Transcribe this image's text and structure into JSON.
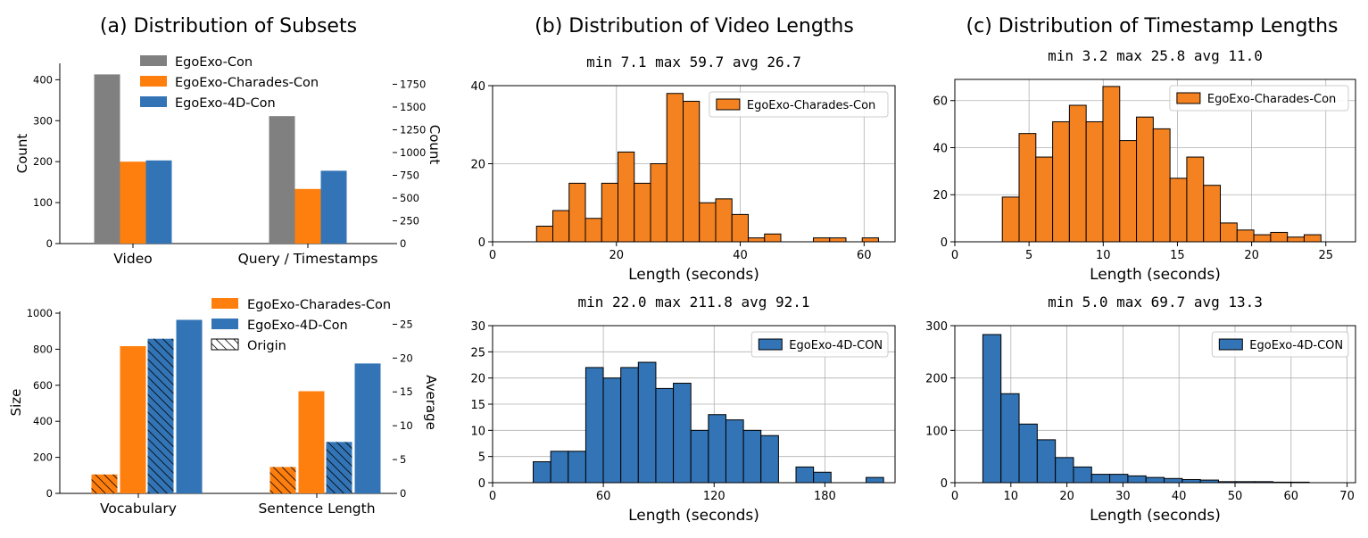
{
  "colors": {
    "gray": "#808080",
    "orange": "#ff7f0e",
    "orange_hist": "#f58220",
    "blue": "#3274b5",
    "grid": "#b0b0b0",
    "edge": "#000000"
  },
  "titles": {
    "a": "(a) Distribution of Subsets",
    "b": "(b) Distribution of Video Lengths",
    "c": "(c) Distribution of Timestamp Lengths"
  },
  "chart_data": [
    {
      "id": "subsets-counts",
      "type": "bar",
      "categories": [
        "Video",
        "Query / Timestamps"
      ],
      "ylabel_left": "Count",
      "ylabel_right": "Count",
      "ylim_left": [
        0,
        440
      ],
      "yticks_left": [
        0,
        100,
        200,
        300,
        400
      ],
      "ylim_right": [
        0,
        1980
      ],
      "yticks_right": [
        0,
        250,
        500,
        750,
        1000,
        1250,
        1500,
        1750
      ],
      "legend_position": "top-center",
      "series": [
        {
          "name": "EgoExo-Con",
          "color": "gray",
          "values": [
            413,
            1400
          ]
        },
        {
          "name": "EgoExo-Charades-Con",
          "color": "orange",
          "values": [
            200,
            600
          ]
        },
        {
          "name": "EgoExo-4D-Con",
          "color": "blue",
          "values": [
            203,
            800
          ]
        }
      ]
    },
    {
      "id": "subsets-vocab",
      "type": "bar",
      "categories": [
        "Vocabulary",
        "Sentence Length"
      ],
      "ylabel_left": "Size",
      "ylabel_right": "Average",
      "ylim_left": [
        0,
        1010
      ],
      "yticks_left": [
        0,
        200,
        400,
        600,
        800,
        1000
      ],
      "ylim_right": [
        0,
        26.9
      ],
      "yticks_right": [
        0,
        5,
        10,
        15,
        20,
        25
      ],
      "legend_position": "top-right",
      "legend": [
        {
          "name": "EgoExo-Charades-Con",
          "kind": "solid",
          "color": "orange"
        },
        {
          "name": "EgoExo-4D-Con",
          "kind": "solid",
          "color": "blue"
        },
        {
          "name": "Origin",
          "kind": "hatch"
        }
      ],
      "bars": [
        {
          "category": "Vocabulary",
          "series": "EgoExo-Charades-Con",
          "variant": "origin",
          "value": 105
        },
        {
          "category": "Vocabulary",
          "series": "EgoExo-Charades-Con",
          "variant": "con",
          "value": 817
        },
        {
          "category": "Vocabulary",
          "series": "EgoExo-4D-Con",
          "variant": "origin",
          "value": 858
        },
        {
          "category": "Vocabulary",
          "series": "EgoExo-4D-Con",
          "variant": "con",
          "value": 963
        },
        {
          "category": "Sentence Length",
          "series": "EgoExo-Charades-Con",
          "variant": "origin",
          "value": 3.9
        },
        {
          "category": "Sentence Length",
          "series": "EgoExo-Charades-Con",
          "variant": "con",
          "value": 15.1
        },
        {
          "category": "Sentence Length",
          "series": "EgoExo-4D-Con",
          "variant": "origin",
          "value": 7.6
        },
        {
          "category": "Sentence Length",
          "series": "EgoExo-4D-Con",
          "variant": "con",
          "value": 19.2
        }
      ]
    },
    {
      "id": "video-charades",
      "type": "bar",
      "subtitle": "min 7.1 max 59.7 avg 26.7",
      "xlabel": "Length (seconds)",
      "legend_label": "EgoExo-Charades-Con",
      "legend_position": "top-right",
      "color": "orange_hist",
      "grid": true,
      "xlim": [
        0,
        65
      ],
      "ylim": [
        0,
        40
      ],
      "xticks": [
        0,
        20,
        40,
        60
      ],
      "yticks": [
        0,
        20,
        40
      ],
      "bin_start": 7.1,
      "bin_width": 2.63,
      "counts": [
        4,
        8,
        15,
        6,
        15,
        23,
        15,
        20,
        38,
        36,
        10,
        11,
        7,
        1,
        2,
        0,
        0,
        1,
        1,
        0,
        1
      ]
    },
    {
      "id": "ts-charades",
      "type": "bar",
      "subtitle": "min 3.2 max 25.8 avg 11.0",
      "xlabel": "Length (seconds)",
      "legend_label": "EgoExo-Charades-Con",
      "legend_position": "top-right",
      "color": "orange_hist",
      "grid": true,
      "xlim": [
        0,
        27
      ],
      "ylim": [
        0,
        69
      ],
      "xticks": [
        0,
        5,
        10,
        15,
        20,
        25
      ],
      "yticks": [
        0,
        20,
        40,
        60
      ],
      "bin_start": 3.2,
      "bin_width": 1.13,
      "counts": [
        19,
        46,
        36,
        51,
        58,
        51,
        66,
        43,
        53,
        48,
        27,
        36,
        24,
        8,
        5,
        3,
        4,
        2,
        3
      ]
    },
    {
      "id": "video-4d",
      "type": "bar",
      "subtitle": "min 22.0 max 211.8 avg 92.1",
      "xlabel": "Length (seconds)",
      "legend_label": "EgoExo-4D-CON",
      "legend_position": "top-right",
      "color": "blue",
      "grid": true,
      "xlim": [
        0,
        218
      ],
      "ylim": [
        0,
        30
      ],
      "xticks": [
        0,
        60,
        120,
        180
      ],
      "yticks": [
        0,
        5,
        10,
        15,
        20,
        25,
        30
      ],
      "bin_start": 22.0,
      "bin_width": 9.49,
      "counts": [
        4,
        6,
        6,
        22,
        20,
        22,
        23,
        18,
        19,
        10,
        13,
        12,
        10,
        9,
        0,
        3,
        2,
        0,
        0,
        1
      ]
    },
    {
      "id": "ts-4d",
      "type": "bar",
      "subtitle": "min 5.0 max 69.7 avg 13.3",
      "xlabel": "Length (seconds)",
      "legend_label": "EgoExo-4D-CON",
      "legend_position": "top-right",
      "color": "blue",
      "grid": true,
      "xlim": [
        0,
        71.5
      ],
      "ylim": [
        0,
        300
      ],
      "xticks": [
        0,
        10,
        20,
        30,
        40,
        50,
        60,
        70
      ],
      "yticks": [
        0,
        100,
        200,
        300
      ],
      "bin_start": 5.0,
      "bin_width": 3.235,
      "counts": [
        283,
        170,
        112,
        82,
        48,
        30,
        16,
        16,
        13,
        10,
        8,
        6,
        5,
        2,
        2,
        2,
        1,
        1,
        0,
        0
      ]
    }
  ]
}
